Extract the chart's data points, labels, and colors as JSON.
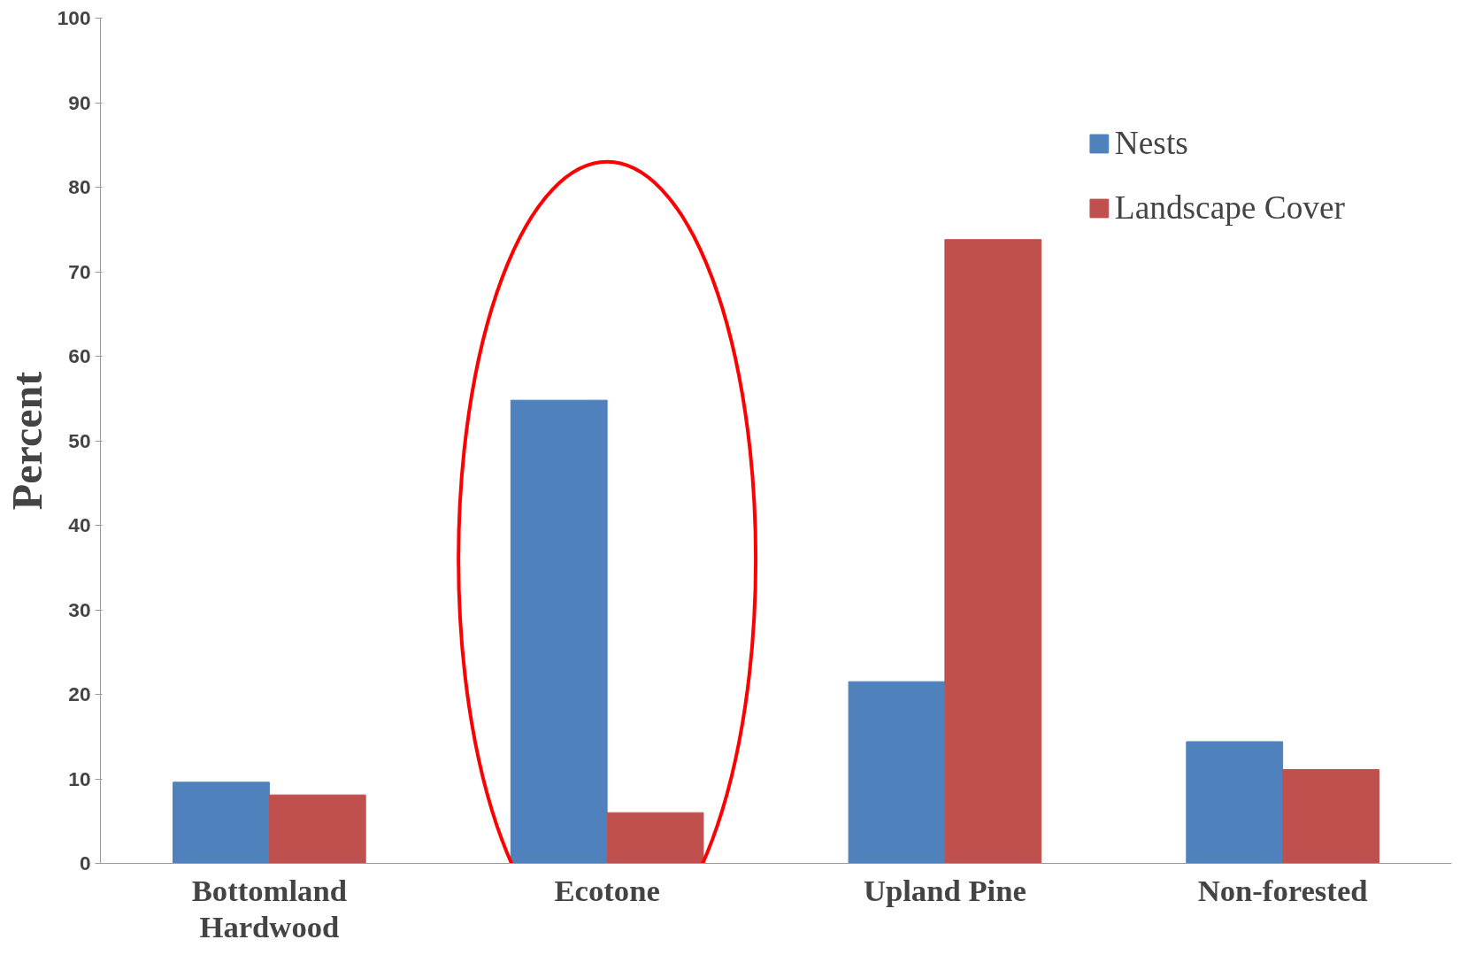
{
  "chart_data": {
    "type": "bar",
    "ylabel": "Percent",
    "categories": [
      "Bottomland\nHardwood",
      "Ecotone",
      "Upland Pine",
      "Non-forested"
    ],
    "series": [
      {
        "name": "Nests",
        "color": "#4f81bd",
        "values": [
          9.6,
          54.8,
          21.5,
          14.4
        ]
      },
      {
        "name": "Landscape Cover",
        "color": "#c0504d",
        "values": [
          8.1,
          6.0,
          73.8,
          11.1
        ]
      }
    ],
    "ylim": [
      0,
      100
    ],
    "yticks": [
      0,
      10,
      20,
      30,
      40,
      50,
      60,
      70,
      80,
      90,
      100
    ],
    "grid": false,
    "legend": "top right"
  }
}
